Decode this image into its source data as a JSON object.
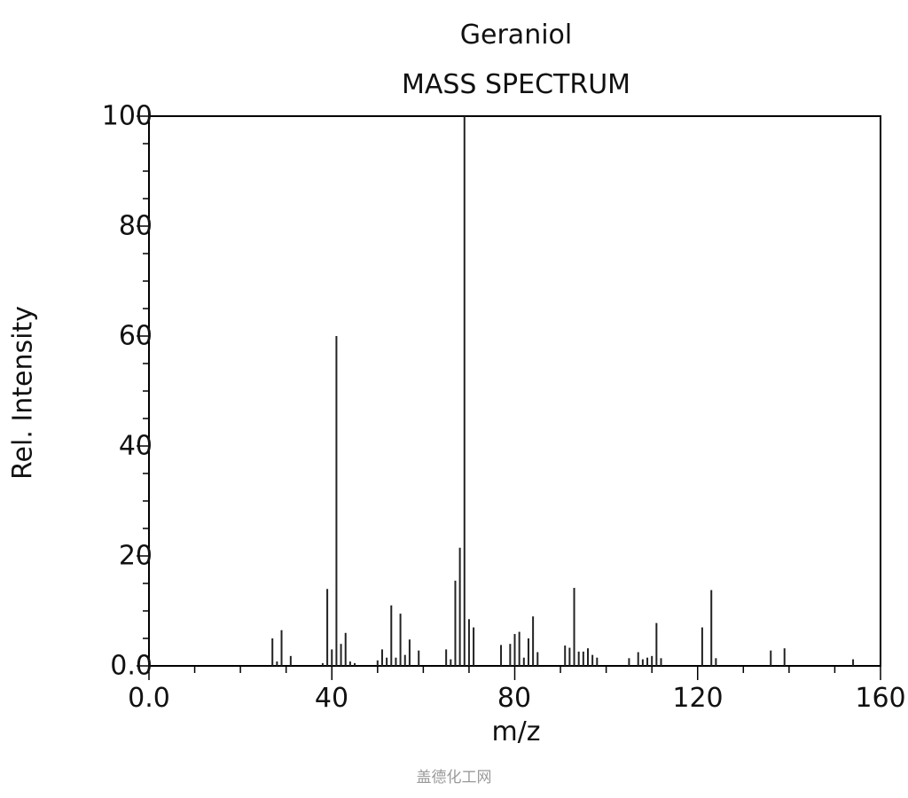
{
  "chart_data": {
    "type": "bar",
    "title": "Geraniol",
    "subtitle": "MASS SPECTRUM",
    "xlabel": "m/z",
    "ylabel": "Rel. Intensity",
    "xlim": [
      0,
      160
    ],
    "ylim": [
      0,
      100
    ],
    "xticks": [
      "0.0",
      "40",
      "80",
      "120",
      "160"
    ],
    "yticks": [
      "0.0",
      "20",
      "40",
      "60",
      "80",
      "100"
    ],
    "grid": false,
    "series": [
      {
        "x": [
          27,
          28,
          29,
          31,
          38,
          39,
          40,
          41,
          42,
          43,
          44,
          45,
          50,
          51,
          52,
          53,
          54,
          55,
          56,
          57,
          59,
          65,
          66,
          67,
          68,
          69,
          70,
          71,
          77,
          79,
          80,
          81,
          82,
          83,
          84,
          85,
          91,
          92,
          93,
          94,
          95,
          96,
          97,
          98,
          105,
          107,
          108,
          109,
          110,
          111,
          112,
          121,
          123,
          124,
          136,
          139,
          154
        ],
        "values": [
          5,
          0.8,
          6.5,
          1.8,
          0.5,
          14,
          3,
          60,
          4,
          6,
          0.8,
          0.5,
          1,
          3,
          1.5,
          11,
          1.5,
          9.5,
          2,
          4.8,
          2.8,
          3,
          1.2,
          15.5,
          21.5,
          100,
          8.5,
          7,
          3.8,
          4,
          5.8,
          6.2,
          1.5,
          5,
          9,
          2.5,
          3.7,
          3.3,
          14.2,
          2.6,
          2.6,
          3.2,
          2,
          1.5,
          1.4,
          2.5,
          1.2,
          1.5,
          1.8,
          7.8,
          1.4,
          7,
          13.8,
          1.4,
          2.8,
          3.2,
          1.2
        ]
      }
    ]
  },
  "watermark": "盖德化工网",
  "colors": {
    "bar": "#222222",
    "axis": "#000000",
    "background": "#ffffff"
  }
}
